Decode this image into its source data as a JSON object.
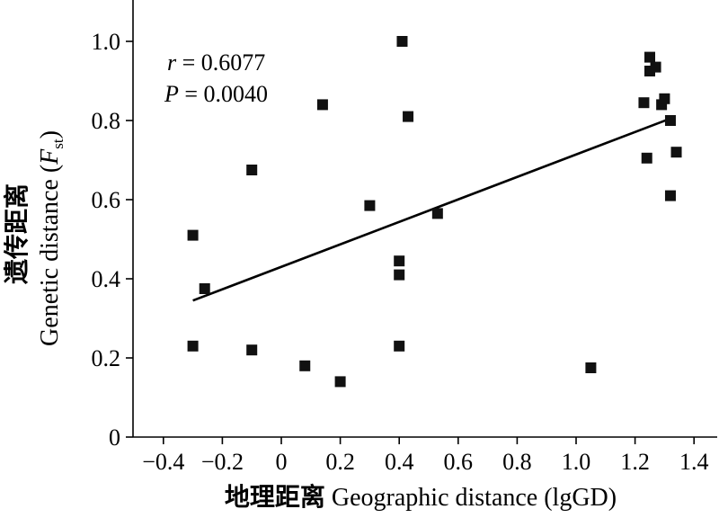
{
  "chart_data": {
    "type": "scatter",
    "xlabel_cn": "地理距离",
    "xlabel_en": "Geographic distance (lgGD)",
    "ylabel_cn": "遗传距离",
    "ylabel_en_prefix": "Genetic distance (",
    "ylabel_en_symbol": "F",
    "ylabel_en_subscript": "st",
    "ylabel_en_suffix": ")",
    "xlim": [
      -0.5,
      1.5
    ],
    "ylim": [
      0,
      1.1
    ],
    "xticks": [
      -0.4,
      -0.2,
      0,
      0.2,
      0.4,
      0.6,
      0.8,
      1.0,
      1.2,
      1.4
    ],
    "xtick_labels": [
      "−0.4",
      "−0.2",
      "0",
      "0.2",
      "0.4",
      "0.6",
      "0.8",
      "1.0",
      "1.2",
      "1.4"
    ],
    "yticks": [
      0,
      0.2,
      0.4,
      0.6,
      0.8,
      1.0
    ],
    "ytick_labels": [
      "0",
      "0.2",
      "0.4",
      "0.6",
      "0.8",
      "1.0"
    ],
    "grid": false,
    "marker": "square",
    "marker_color": "#111111",
    "annotation": {
      "r_symbol": "r",
      "r_text": " = 0.6077",
      "p_symbol": "P",
      "p_text": " = 0.0040"
    },
    "trendline": {
      "x": [
        -0.3,
        1.32
      ],
      "y": [
        0.345,
        0.805
      ]
    },
    "points": [
      {
        "x": -0.3,
        "y": 0.51
      },
      {
        "x": -0.3,
        "y": 0.23
      },
      {
        "x": -0.26,
        "y": 0.375
      },
      {
        "x": -0.1,
        "y": 0.675
      },
      {
        "x": -0.1,
        "y": 0.22
      },
      {
        "x": 0.08,
        "y": 0.18
      },
      {
        "x": 0.14,
        "y": 0.84
      },
      {
        "x": 0.2,
        "y": 0.14
      },
      {
        "x": 0.3,
        "y": 0.585
      },
      {
        "x": 0.4,
        "y": 0.445
      },
      {
        "x": 0.4,
        "y": 0.41
      },
      {
        "x": 0.4,
        "y": 0.23
      },
      {
        "x": 0.41,
        "y": 1.0
      },
      {
        "x": 0.43,
        "y": 0.81
      },
      {
        "x": 0.53,
        "y": 0.565
      },
      {
        "x": 1.05,
        "y": 0.175
      },
      {
        "x": 1.23,
        "y": 0.845
      },
      {
        "x": 1.24,
        "y": 0.705
      },
      {
        "x": 1.25,
        "y": 0.96
      },
      {
        "x": 1.25,
        "y": 0.925
      },
      {
        "x": 1.27,
        "y": 0.935
      },
      {
        "x": 1.29,
        "y": 0.84
      },
      {
        "x": 1.3,
        "y": 0.855
      },
      {
        "x": 1.32,
        "y": 0.8
      },
      {
        "x": 1.32,
        "y": 0.61
      },
      {
        "x": 1.34,
        "y": 0.72
      }
    ]
  }
}
